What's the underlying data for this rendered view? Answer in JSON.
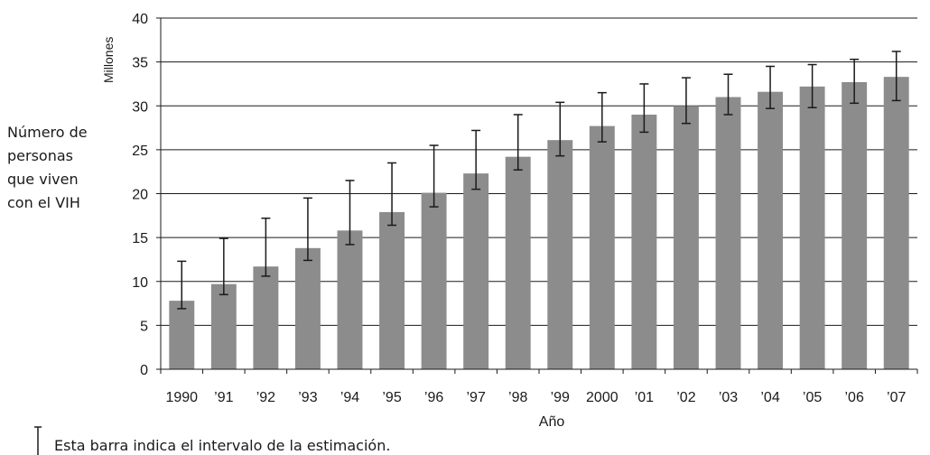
{
  "chart_data": {
    "type": "bar",
    "xlabel": "Año",
    "ylabel_units": "Millones",
    "ylabel_lines": [
      "Número de",
      "personas",
      "que viven",
      "con el VIH"
    ],
    "ylim": [
      0,
      40
    ],
    "yticks": [
      0,
      5,
      10,
      15,
      20,
      25,
      30,
      35,
      40
    ],
    "grid": true,
    "bar_color": "#8c8c8c",
    "categories": [
      "1990",
      "’91",
      "’92",
      "’93",
      "’94",
      "’95",
      "’96",
      "’97",
      "’98",
      "’99",
      "2000",
      "’01",
      "’02",
      "’03",
      "’04",
      "’05",
      "’06",
      "’07"
    ],
    "series": [
      {
        "values": [
          7.8,
          9.7,
          11.7,
          13.8,
          15.8,
          17.9,
          20.1,
          22.3,
          24.2,
          26.1,
          27.7,
          29.0,
          30.0,
          31.0,
          31.6,
          32.2,
          32.7,
          33.3
        ],
        "error_low": [
          6.9,
          8.5,
          10.6,
          12.4,
          14.2,
          16.4,
          18.5,
          20.5,
          22.7,
          24.3,
          25.9,
          27.0,
          28.0,
          29.0,
          29.7,
          29.8,
          30.3,
          30.6
        ],
        "error_high": [
          12.3,
          14.9,
          17.2,
          19.5,
          21.5,
          23.5,
          25.5,
          27.2,
          29.0,
          30.4,
          31.5,
          32.5,
          33.2,
          33.6,
          34.5,
          34.7,
          35.3,
          36.2
        ]
      }
    ],
    "legend_text": "Esta barra indica el intervalo de la estimación."
  }
}
